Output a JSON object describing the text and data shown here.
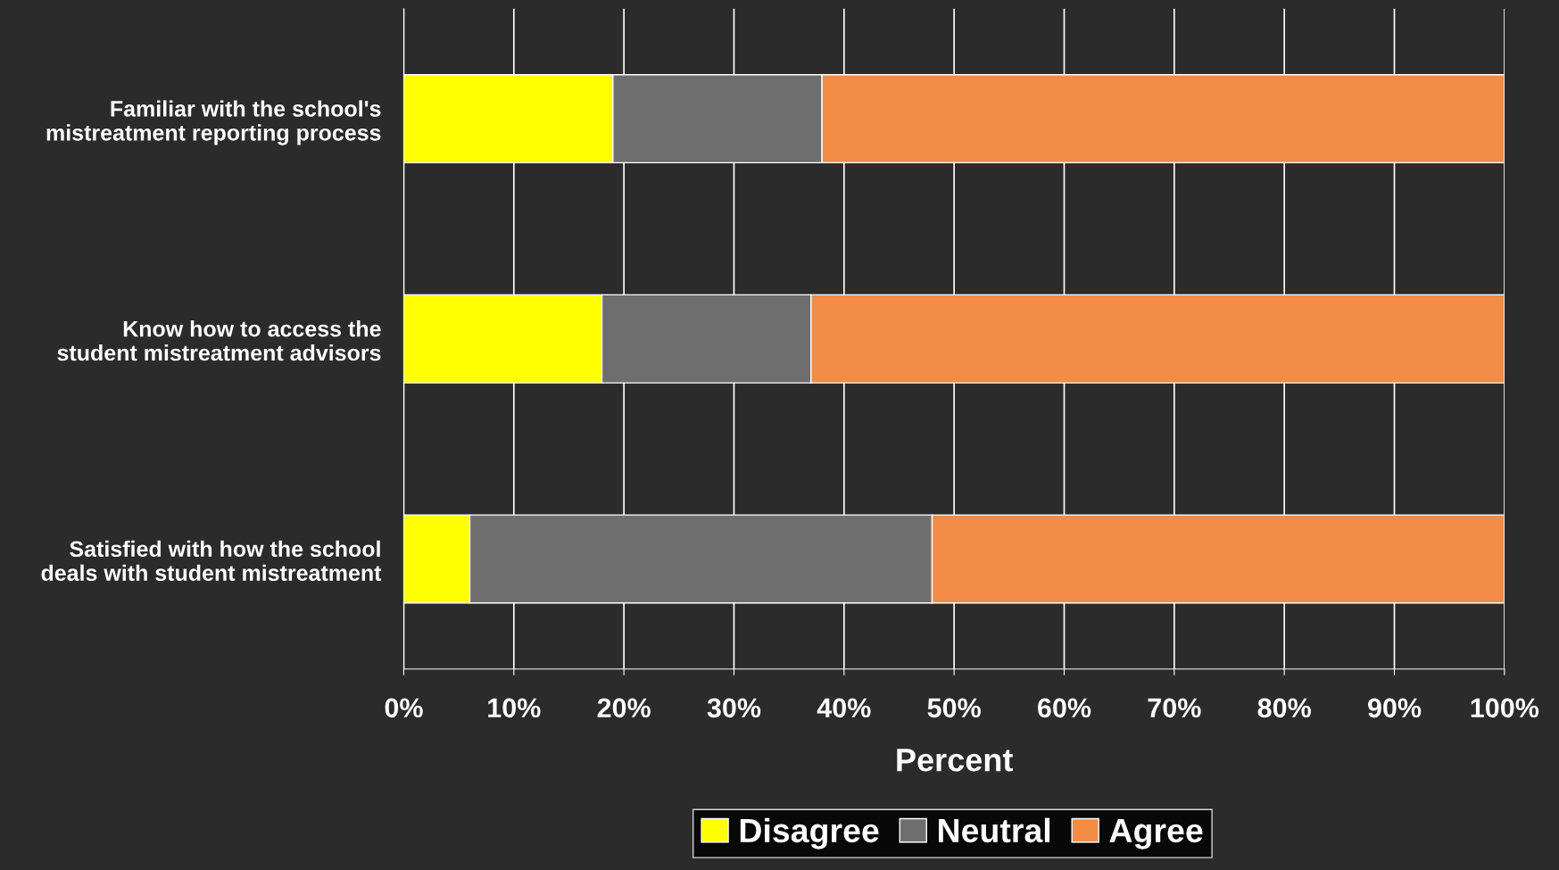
{
  "chart_data": {
    "type": "bar",
    "orientation": "horizontal",
    "stacked": true,
    "categories": [
      "Familiar with the school's\nmistreatment reporting process",
      "Know how to access the\nstudent mistreatment advisors",
      "Satisfied with how the school\ndeals with student mistreatment"
    ],
    "series": [
      {
        "name": "Disagree",
        "color": "#ffff00",
        "values": [
          19,
          18,
          6
        ]
      },
      {
        "name": "Neutral",
        "color": "#6e6e6e",
        "values": [
          19,
          19,
          42
        ]
      },
      {
        "name": "Agree",
        "color": "#f28c46",
        "values": [
          62,
          63,
          52
        ]
      }
    ],
    "xlabel": "Percent",
    "xlim": [
      0,
      100
    ],
    "xticks": [
      {
        "value": 0,
        "label": "0%"
      },
      {
        "value": 10,
        "label": "10%"
      },
      {
        "value": 20,
        "label": "20%"
      },
      {
        "value": 30,
        "label": "30%"
      },
      {
        "value": 40,
        "label": "40%"
      },
      {
        "value": 50,
        "label": "50%"
      },
      {
        "value": 60,
        "label": "60%"
      },
      {
        "value": 70,
        "label": "70%"
      },
      {
        "value": 80,
        "label": "80%"
      },
      {
        "value": 90,
        "label": "90%"
      },
      {
        "value": 100,
        "label": "100%"
      }
    ],
    "grid": "x",
    "legend": "bottom"
  }
}
